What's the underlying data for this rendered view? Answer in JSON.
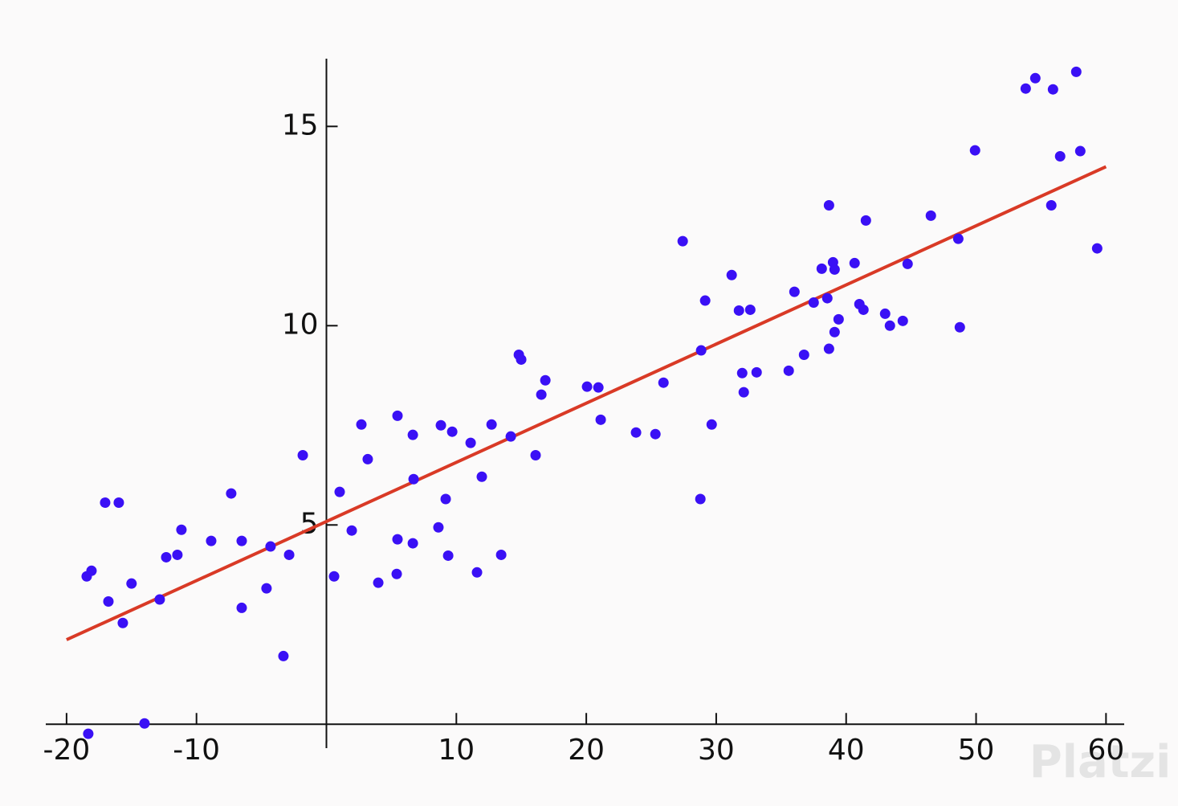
{
  "chart_data": {
    "type": "scatter",
    "x": [
      -18.45,
      -18.08,
      -18.33,
      -17.03,
      -15.98,
      -16.78,
      -15.67,
      -15.0,
      -14.0,
      -12.83,
      -12.33,
      -11.47,
      -11.16,
      -8.87,
      -7.33,
      -6.52,
      -6.52,
      -4.61,
      -4.3,
      -3.31,
      -2.87,
      -1.82,
      0.59,
      1.02,
      1.95,
      2.69,
      3.18,
      3.99,
      5.47,
      5.47,
      5.41,
      6.65,
      6.71,
      6.65,
      8.62,
      8.81,
      9.68,
      9.18,
      9.37,
      11.1,
      11.59,
      11.96,
      12.71,
      13.45,
      14.19,
      14.81,
      14.99,
      16.1,
      16.54,
      16.85,
      20.06,
      20.93,
      21.11,
      23.83,
      25.32,
      25.94,
      27.42,
      28.78,
      28.84,
      29.15,
      29.65,
      31.19,
      31.75,
      32.0,
      32.12,
      32.62,
      33.11,
      35.58,
      36.02,
      36.76,
      37.5,
      38.12,
      38.55,
      38.68,
      38.99,
      39.11,
      38.68,
      39.11,
      39.42,
      40.65,
      41.02,
      41.33,
      41.52,
      43.0,
      43.37,
      44.36,
      44.73,
      46.52,
      48.63,
      48.75,
      49.92,
      53.82,
      54.56,
      55.92,
      55.79,
      56.47,
      57.71,
      58.02,
      59.32
    ],
    "values": [
      3.71,
      3.85,
      -0.24,
      5.56,
      5.56,
      3.08,
      2.54,
      3.53,
      0.02,
      3.13,
      4.19,
      4.25,
      4.88,
      4.6,
      5.79,
      4.6,
      2.92,
      3.41,
      4.46,
      1.71,
      4.25,
      6.75,
      3.71,
      5.83,
      4.86,
      7.52,
      6.65,
      3.55,
      7.74,
      4.64,
      3.77,
      7.26,
      6.15,
      4.54,
      4.94,
      7.5,
      7.34,
      5.65,
      4.23,
      7.06,
      3.81,
      6.21,
      7.52,
      4.25,
      7.22,
      9.27,
      9.15,
      6.75,
      8.27,
      8.63,
      8.47,
      8.45,
      7.64,
      7.32,
      7.28,
      8.57,
      12.12,
      5.65,
      9.38,
      10.63,
      7.52,
      11.27,
      10.38,
      8.81,
      8.33,
      10.4,
      8.83,
      8.87,
      10.85,
      9.27,
      10.58,
      11.43,
      10.69,
      13.02,
      11.59,
      11.41,
      9.42,
      9.84,
      10.16,
      11.57,
      10.54,
      10.4,
      12.64,
      10.3,
      10.0,
      10.12,
      11.55,
      12.76,
      12.18,
      9.96,
      14.4,
      15.95,
      16.21,
      15.93,
      13.02,
      14.25,
      16.37,
      14.38,
      11.94
    ],
    "color": "#3a10f5",
    "fit_line": {
      "x": [
        -20,
        60
      ],
      "values": [
        2.12,
        13.99
      ],
      "color": "#d93a26"
    },
    "xlim": [
      -21.6,
      61.4
    ],
    "ylim": [
      -0.6,
      16.7
    ],
    "xticks": [
      -20,
      -10,
      10,
      20,
      30,
      40,
      50,
      60
    ],
    "yticks": [
      5,
      10,
      15
    ],
    "watermark": "Platzi"
  }
}
